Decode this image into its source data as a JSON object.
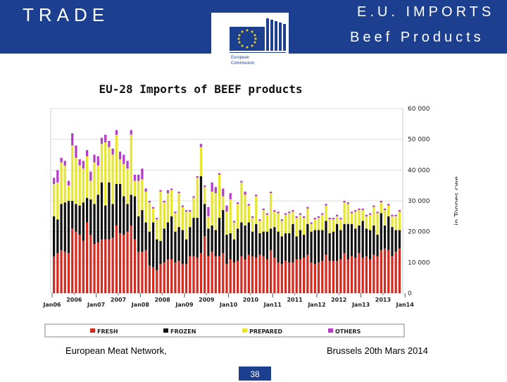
{
  "header": {
    "title": "TRADE",
    "imports": "E.U.   IMPORTS",
    "subtitle": "Beef Products",
    "logo_text_1": "European",
    "logo_text_2": "Commission",
    "brand_color": "#1c3f8f"
  },
  "footer": {
    "left": "European Meat Network,",
    "right": "Brussels 20th Mars 2014",
    "page": "38"
  },
  "chart_data": {
    "type": "bar",
    "stacked": true,
    "title": "EU-28 Imports of BEEF products",
    "ylabel": "in Tonnes cwe",
    "ylim": [
      0,
      60000
    ],
    "yticks": [
      "0",
      "10 000",
      "20 000",
      "30 000",
      "40 000",
      "50 000",
      "60 000"
    ],
    "ytick_values": [
      0,
      10000,
      20000,
      30000,
      40000,
      50000,
      60000
    ],
    "year_labels": [
      "2006",
      "2007",
      "2008",
      "2009",
      "2010",
      "2011",
      "2012",
      "2013"
    ],
    "jan_labels": [
      "Jan06",
      "Jan07",
      "Jan08",
      "Jan09",
      "Jan10",
      "Jan11",
      "Jan12",
      "Jan13",
      "Jan14"
    ],
    "legend": [
      "FRESH",
      "FROZEN",
      "PREPARED",
      "OTHERS"
    ],
    "colors": {
      "FRESH": "#d42a20",
      "FROZEN": "#111111",
      "PREPARED": "#e6e632",
      "OTHERS": "#b43cc8"
    },
    "series": [
      {
        "name": "FRESH",
        "values": [
          12000,
          13000,
          14000,
          13500,
          13000,
          21000,
          20000,
          19000,
          17000,
          23000,
          19000,
          16000,
          16500,
          17500,
          17500,
          17500,
          18000,
          22000,
          19500,
          19000,
          20000,
          22000,
          17500,
          13500,
          13500,
          14000,
          9000,
          8500,
          7500,
          9500,
          10000,
          11000,
          11000,
          10000,
          10500,
          9500,
          9500,
          12000,
          12000,
          11500,
          13000,
          18500,
          12000,
          13500,
          12000,
          12000,
          13000,
          9500,
          11000,
          10000,
          10500,
          12000,
          11000,
          12500,
          12000,
          11500,
          12500,
          12000,
          11000,
          14000,
          11500,
          10000,
          9500,
          10500,
          10000,
          10000,
          11000,
          11000,
          11500,
          12500,
          10000,
          9500,
          10000,
          10500,
          12500,
          10500,
          10500,
          10500,
          11000,
          13000,
          11000,
          12000,
          11500,
          13000,
          11500,
          12000,
          11000,
          12500,
          12000,
          14000,
          14500,
          14000,
          12000,
          13500,
          14500
        ]
      },
      {
        "name": "FROZEN",
        "values": [
          13000,
          11000,
          15000,
          16000,
          17000,
          9000,
          9000,
          9500,
          12500,
          8000,
          11500,
          13000,
          15500,
          18500,
          11000,
          18500,
          11000,
          13500,
          16000,
          12500,
          9000,
          10000,
          14000,
          11500,
          13500,
          9000,
          11000,
          14500,
          10000,
          7500,
          11000,
          12000,
          14000,
          10000,
          11000,
          11000,
          8000,
          9500,
          12500,
          13000,
          25000,
          10500,
          9000,
          8500,
          8500,
          12500,
          14000,
          9500,
          8500,
          7500,
          10500,
          11000,
          11000,
          10500,
          8000,
          11000,
          7000,
          8000,
          9000,
          7000,
          10000,
          10000,
          9000,
          9000,
          9500,
          12500,
          7500,
          9500,
          7500,
          10000,
          10000,
          11000,
          10500,
          10000,
          11000,
          9000,
          9500,
          12000,
          9500,
          9500,
          11500,
          10500,
          9500,
          9000,
          12000,
          9000,
          9500,
          9500,
          7000,
          12000,
          7500,
          11000,
          9500,
          7000,
          6000
        ]
      },
      {
        "name": "PREPARED",
        "values": [
          10500,
          12000,
          13500,
          12000,
          5000,
          18000,
          15000,
          13000,
          11000,
          13500,
          6000,
          13500,
          9500,
          12500,
          20500,
          11500,
          16000,
          16000,
          8000,
          10500,
          11500,
          19500,
          5000,
          11500,
          10000,
          10000,
          9500,
          4500,
          6500,
          16000,
          8500,
          9500,
          8500,
          6000,
          11000,
          7500,
          9000,
          5000,
          6500,
          13000,
          9500,
          5500,
          4000,
          11000,
          12000,
          14000,
          4500,
          7500,
          11000,
          5500,
          8000,
          13000,
          10000,
          5500,
          4500,
          9000,
          4000,
          7000,
          5500,
          11500,
          5000,
          6000,
          5000,
          6000,
          6500,
          4000,
          6000,
          5000,
          5500,
          5000,
          2500,
          3500,
          4000,
          5000,
          5000,
          4500,
          4000,
          2500,
          3500,
          7000,
          6500,
          3500,
          5500,
          5000,
          3500,
          4000,
          5000,
          6000,
          7000,
          3500,
          5000,
          3500,
          3500,
          4500,
          6000
        ]
      },
      {
        "name": "OTHERS",
        "values": [
          2000,
          4000,
          1500,
          1500,
          1500,
          4000,
          4000,
          2000,
          2500,
          2000,
          3000,
          2500,
          3000,
          2000,
          2500,
          2000,
          2000,
          1500,
          2500,
          3000,
          2500,
          1500,
          2000,
          2000,
          3500,
          1000,
          500,
          500,
          500,
          500,
          500,
          1000,
          500,
          500,
          500,
          500,
          500,
          500,
          500,
          500,
          1000,
          500,
          3000,
          3000,
          2000,
          500,
          2500,
          2000,
          2000,
          500,
          500,
          500,
          1000,
          500,
          500,
          500,
          500,
          500,
          500,
          500,
          500,
          500,
          500,
          500,
          500,
          500,
          500,
          500,
          500,
          500,
          500,
          500,
          500,
          500,
          500,
          500,
          500,
          500,
          500,
          500,
          500,
          500,
          500,
          500,
          500,
          500,
          500,
          500,
          500,
          500,
          500,
          500,
          500,
          500,
          500
        ]
      }
    ]
  }
}
